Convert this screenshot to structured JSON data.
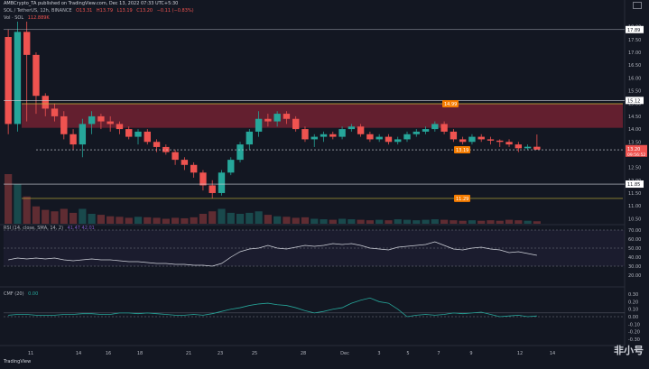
{
  "header": {
    "publisher": "AMBCrypto_TA published on TradingView.com, Dec 13, 2022 07:33 UTC+5:30",
    "symbol": "SOL / TetherUS, 12h, BINANCE",
    "ohlc": [
      "O13.31",
      "H13.79",
      "L13.19",
      "C13.20",
      "−0.11 (−0.83%)"
    ],
    "volume_label": "Vol · SOL",
    "volume_value": "112.889K"
  },
  "rsi_header": {
    "label": "RSI (14, close, SMA, 14, 2)",
    "values": "41.47  42.01"
  },
  "cmf_header": {
    "label": "CMF (20)",
    "value": "0.00"
  },
  "footer": {
    "brand": "TradingView",
    "watermark": "非小号"
  },
  "colors": {
    "up": "#26a69a",
    "down": "#ef5350",
    "bg": "#131722",
    "zone": "#a5263b",
    "hline": "#c9b73a",
    "rsi_line": "#7e57c2"
  },
  "icons": [
    "camera-icon",
    "tradingview-logo-icon"
  ],
  "chart_data": {
    "type": "candlestick",
    "price_axis": {
      "min": 10.3,
      "max": 18.2,
      "ticks": [
        "18.00",
        "17.50",
        "17.00",
        "16.50",
        "16.00",
        "15.50",
        "15.00",
        "14.50",
        "14.00",
        "13.50",
        "13.00",
        "12.50",
        "12.00",
        "11.50",
        "11.00",
        "10.50"
      ]
    },
    "x_labels": [
      "11",
      "14",
      "16",
      "18",
      "21",
      "23",
      "25",
      "28",
      "Dec",
      "3",
      "5",
      "7",
      "9",
      "12",
      "14"
    ],
    "price_labels": {
      "top": "17.89",
      "level": "15.12",
      "current": "13.20",
      "countdown": "09:56:52",
      "lower": "11.85"
    },
    "annotations": [
      "14.99",
      "13.19",
      "11.29"
    ],
    "supply_zone": [
      14.05,
      15.0
    ],
    "hlines": [
      15.12,
      14.99,
      11.29
    ],
    "dashed_level": 13.19,
    "candles": [
      [
        17.6,
        17.9,
        13.8,
        14.2
      ],
      [
        14.2,
        18.2,
        13.9,
        17.8
      ],
      [
        17.8,
        18.2,
        14.3,
        16.9
      ],
      [
        16.9,
        17.0,
        14.6,
        15.3
      ],
      [
        15.3,
        15.4,
        14.5,
        14.8
      ],
      [
        14.8,
        15.0,
        14.3,
        14.5
      ],
      [
        14.5,
        14.7,
        13.6,
        13.8
      ],
      [
        13.8,
        14.0,
        13.2,
        13.4
      ],
      [
        13.4,
        14.4,
        12.9,
        14.2
      ],
      [
        14.2,
        14.7,
        13.8,
        14.5
      ],
      [
        14.5,
        14.6,
        14.0,
        14.3
      ],
      [
        14.3,
        14.5,
        13.9,
        14.2
      ],
      [
        14.2,
        14.3,
        13.8,
        14.0
      ],
      [
        14.0,
        14.1,
        13.6,
        13.7
      ],
      [
        13.7,
        14.0,
        13.4,
        13.9
      ],
      [
        13.9,
        14.0,
        13.4,
        13.5
      ],
      [
        13.5,
        13.6,
        13.1,
        13.3
      ],
      [
        13.3,
        13.4,
        13.0,
        13.1
      ],
      [
        13.1,
        13.2,
        12.6,
        12.8
      ],
      [
        12.8,
        12.9,
        12.4,
        12.6
      ],
      [
        12.6,
        12.7,
        12.1,
        12.3
      ],
      [
        12.3,
        12.4,
        11.6,
        11.8
      ],
      [
        11.8,
        12.0,
        11.3,
        11.5
      ],
      [
        11.5,
        12.4,
        11.4,
        12.3
      ],
      [
        12.3,
        12.9,
        12.2,
        12.8
      ],
      [
        12.8,
        13.5,
        12.7,
        13.4
      ],
      [
        13.4,
        14.0,
        13.2,
        13.9
      ],
      [
        13.9,
        14.7,
        13.7,
        14.4
      ],
      [
        14.4,
        14.6,
        14.1,
        14.3
      ],
      [
        14.3,
        14.7,
        14.1,
        14.6
      ],
      [
        14.6,
        14.7,
        14.2,
        14.4
      ],
      [
        14.4,
        14.5,
        13.9,
        14.0
      ],
      [
        14.0,
        14.1,
        13.5,
        13.6
      ],
      [
        13.6,
        13.8,
        13.3,
        13.7
      ],
      [
        13.7,
        13.9,
        13.5,
        13.8
      ],
      [
        13.8,
        13.9,
        13.6,
        13.7
      ],
      [
        13.7,
        14.1,
        13.6,
        14.0
      ],
      [
        14.0,
        14.2,
        13.9,
        14.1
      ],
      [
        14.1,
        14.2,
        13.7,
        13.8
      ],
      [
        13.8,
        13.9,
        13.5,
        13.6
      ],
      [
        13.6,
        13.8,
        13.5,
        13.7
      ],
      [
        13.7,
        13.8,
        13.4,
        13.5
      ],
      [
        13.5,
        13.7,
        13.4,
        13.6
      ],
      [
        13.6,
        13.9,
        13.5,
        13.8
      ],
      [
        13.8,
        14.0,
        13.7,
        13.9
      ],
      [
        13.9,
        14.1,
        13.8,
        14.0
      ],
      [
        14.0,
        14.3,
        13.9,
        14.2
      ],
      [
        14.2,
        14.3,
        13.8,
        13.9
      ],
      [
        13.9,
        14.0,
        13.5,
        13.6
      ],
      [
        13.6,
        13.7,
        13.4,
        13.5
      ],
      [
        13.5,
        13.8,
        13.4,
        13.7
      ],
      [
        13.7,
        13.8,
        13.5,
        13.6
      ],
      [
        13.6,
        13.7,
        13.4,
        13.55
      ],
      [
        13.55,
        13.6,
        13.3,
        13.5
      ],
      [
        13.5,
        13.6,
        13.3,
        13.4
      ],
      [
        13.4,
        13.5,
        13.1,
        13.25
      ],
      [
        13.25,
        13.4,
        13.2,
        13.31
      ],
      [
        13.31,
        13.79,
        13.19,
        13.2
      ]
    ],
    "volume": [
      1.0,
      0.8,
      0.55,
      0.35,
      0.28,
      0.25,
      0.3,
      0.22,
      0.3,
      0.2,
      0.18,
      0.15,
      0.14,
      0.12,
      0.14,
      0.13,
      0.12,
      0.1,
      0.12,
      0.11,
      0.13,
      0.2,
      0.25,
      0.3,
      0.22,
      0.2,
      0.22,
      0.25,
      0.18,
      0.15,
      0.14,
      0.12,
      0.13,
      0.1,
      0.09,
      0.08,
      0.1,
      0.09,
      0.08,
      0.07,
      0.08,
      0.07,
      0.09,
      0.08,
      0.07,
      0.08,
      0.09,
      0.08,
      0.07,
      0.06,
      0.07,
      0.06,
      0.07,
      0.06,
      0.08,
      0.07,
      0.06,
      0.05
    ],
    "rsi": {
      "range": [
        10,
        70
      ],
      "levels": [
        30,
        50,
        70
      ],
      "ticks": [
        "70.00",
        "60.00",
        "50.00",
        "40.00",
        "30.00",
        "20.00"
      ],
      "values": [
        37,
        39,
        38,
        39,
        38,
        39,
        37,
        36,
        37,
        38,
        37,
        37,
        36,
        35,
        35,
        34,
        33,
        33,
        32,
        32,
        31,
        31,
        30,
        33,
        40,
        46,
        49,
        50,
        53,
        50,
        49,
        51,
        53,
        52,
        53,
        55,
        54,
        55,
        53,
        50,
        49,
        48,
        51,
        52,
        53,
        54,
        57,
        53,
        49,
        48,
        50,
        51,
        49,
        48,
        45,
        46,
        44,
        42
      ]
    },
    "cmf": {
      "range": [
        -0.35,
        0.35
      ],
      "ticks": [
        "0.30",
        "0.20",
        "0.10",
        "0.00",
        "-0.10",
        "-0.20",
        "-0.30"
      ],
      "values": [
        0.02,
        0.03,
        0.03,
        0.02,
        0.02,
        0.02,
        0.03,
        0.03,
        0.04,
        0.04,
        0.03,
        0.03,
        0.05,
        0.05,
        0.04,
        0.05,
        0.04,
        0.03,
        0.02,
        0.02,
        0.03,
        0.02,
        0.04,
        0.07,
        0.1,
        0.12,
        0.15,
        0.17,
        0.18,
        0.16,
        0.15,
        0.12,
        0.08,
        0.05,
        0.07,
        0.1,
        0.12,
        0.18,
        0.22,
        0.25,
        0.2,
        0.18,
        0.1,
        0.0,
        0.02,
        0.03,
        0.02,
        0.03,
        0.05,
        0.04,
        0.05,
        0.06,
        0.03,
        0.0,
        0.01,
        0.02,
        0.0,
        0.01
      ]
    }
  }
}
